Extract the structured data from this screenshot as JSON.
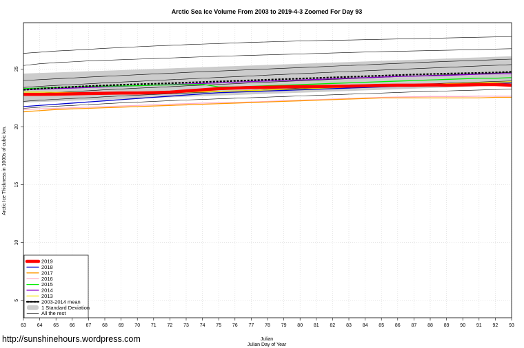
{
  "watermark": "http://sunshinehours.wordpress.com",
  "chart_data": {
    "type": "line",
    "title": "Arctic Sea Ice Volume From 2003 to 2019-4-3 Zoomed For Day 93",
    "xlabel": "Julian",
    "xlabel2": "Julian Day of Year",
    "ylabel": "Arctic Ice Thickness in 1000s of cubic km.",
    "xlim": [
      63,
      93
    ],
    "ylim": [
      3.5,
      29
    ],
    "xticks": [
      "63",
      "64",
      "65",
      "66",
      "67",
      "68",
      "69",
      "70",
      "71",
      "72",
      "73",
      "74",
      "75",
      "76",
      "77",
      "78",
      "79",
      "80",
      "81",
      "82",
      "83",
      "84",
      "85",
      "86",
      "87",
      "88",
      "89",
      "90",
      "91",
      "92",
      "93"
    ],
    "yticks": [
      "5",
      "10",
      "15",
      "20",
      "25"
    ],
    "grid": true,
    "legend_position": "bottom-left",
    "x": [
      63,
      64,
      65,
      66,
      67,
      68,
      69,
      70,
      71,
      72,
      73,
      74,
      75,
      76,
      77,
      78,
      79,
      80,
      81,
      82,
      83,
      84,
      85,
      86,
      87,
      88,
      89,
      90,
      91,
      92,
      93
    ],
    "std_band": {
      "name": "1 Standard Deviation",
      "upper": [
        24.6,
        24.65,
        24.7,
        24.75,
        24.8,
        24.85,
        24.9,
        24.95,
        25.0,
        25.05,
        25.1,
        25.15,
        25.2,
        25.25,
        25.3,
        25.35,
        25.4,
        25.45,
        25.5,
        25.55,
        25.6,
        25.65,
        25.7,
        25.75,
        25.8,
        25.85,
        25.9,
        25.95,
        26.0,
        26.05,
        26.1
      ],
      "lower": [
        22.1,
        22.15,
        22.2,
        22.25,
        22.3,
        22.35,
        22.4,
        22.45,
        22.5,
        22.55,
        22.6,
        22.65,
        22.7,
        22.75,
        22.8,
        22.85,
        22.9,
        22.95,
        23.0,
        23.05,
        23.1,
        23.15,
        23.2,
        23.25,
        23.3,
        23.35,
        23.4,
        23.45,
        23.5,
        23.55,
        23.6
      ]
    },
    "mean": {
      "name": "2003-2014 mean",
      "color": "#000000",
      "values": [
        23.2,
        23.3,
        23.38,
        23.45,
        23.52,
        23.58,
        23.63,
        23.68,
        23.72,
        23.77,
        23.82,
        23.87,
        23.92,
        23.97,
        24.02,
        24.07,
        24.12,
        24.17,
        24.22,
        24.27,
        24.32,
        24.37,
        24.42,
        24.47,
        24.52,
        24.56,
        24.6,
        24.63,
        24.66,
        24.7,
        24.75
      ]
    },
    "rest": {
      "name": "All the rest",
      "color": "#000000",
      "series": [
        [
          26.35,
          26.45,
          26.55,
          26.62,
          26.7,
          26.78,
          26.85,
          26.92,
          26.98,
          27.04,
          27.1,
          27.15,
          27.2,
          27.25,
          27.3,
          27.34,
          27.38,
          27.42,
          27.45,
          27.48,
          27.5,
          27.53,
          27.56,
          27.59,
          27.62,
          27.65,
          27.68,
          27.71,
          27.74,
          27.77,
          27.8
        ],
        [
          25.3,
          25.45,
          25.55,
          25.62,
          25.7,
          25.75,
          25.8,
          25.85,
          25.9,
          25.95,
          26.0,
          26.05,
          26.1,
          26.14,
          26.18,
          26.22,
          26.26,
          26.3,
          26.34,
          26.38,
          26.42,
          26.46,
          26.5,
          26.53,
          26.56,
          26.59,
          26.62,
          26.65,
          26.68,
          26.72,
          26.75
        ],
        [
          24.0,
          24.08,
          24.15,
          24.22,
          24.3,
          24.37,
          24.43,
          24.5,
          24.57,
          24.63,
          24.7,
          24.76,
          24.82,
          24.88,
          24.94,
          25.0,
          25.06,
          25.12,
          25.18,
          25.24,
          25.3,
          25.36,
          25.42,
          25.48,
          25.54,
          25.6,
          25.65,
          25.7,
          25.75,
          25.8,
          25.85
        ],
        [
          23.4,
          23.5,
          23.58,
          23.65,
          23.72,
          23.8,
          23.87,
          23.93,
          24.0,
          24.07,
          24.13,
          24.2,
          24.27,
          24.33,
          24.4,
          24.47,
          24.53,
          24.6,
          24.66,
          24.72,
          24.78,
          24.84,
          24.9,
          24.96,
          25.02,
          25.08,
          25.14,
          25.2,
          25.26,
          25.32,
          25.38
        ],
        [
          22.8,
          22.9,
          22.98,
          23.05,
          23.12,
          23.2,
          23.27,
          23.34,
          23.4,
          23.47,
          23.54,
          23.6,
          23.67,
          23.73,
          23.8,
          23.86,
          23.92,
          23.98,
          24.04,
          24.1,
          24.16,
          24.22,
          24.28,
          24.34,
          24.4,
          24.45,
          24.5,
          24.55,
          24.6,
          24.65,
          24.7
        ],
        [
          22.2,
          22.3,
          22.38,
          22.45,
          22.52,
          22.6,
          22.67,
          22.73,
          22.8,
          22.86,
          22.92,
          22.98,
          23.04,
          23.1,
          23.16,
          23.22,
          23.27,
          23.32,
          23.37,
          23.42,
          23.47,
          23.52,
          23.57,
          23.62,
          23.67,
          23.72,
          23.77,
          23.82,
          23.87,
          23.92,
          23.97
        ],
        [
          21.6,
          21.7,
          21.78,
          21.85,
          21.92,
          22.0,
          22.07,
          22.13,
          22.2,
          22.26,
          22.32,
          22.37,
          22.42,
          22.47,
          22.52,
          22.57,
          22.62,
          22.67,
          22.72,
          22.77,
          22.82,
          22.87,
          22.92,
          22.97,
          23.02,
          23.06,
          23.1,
          23.14,
          23.18,
          23.22,
          23.26
        ]
      ]
    },
    "series": [
      {
        "name": "2013",
        "color": "#f2e600",
        "width": 1.3,
        "values": [
          23.0,
          23.0,
          22.98,
          22.97,
          22.96,
          22.95,
          22.95,
          22.96,
          22.97,
          22.98,
          23.0,
          23.03,
          23.06,
          23.1,
          23.14,
          23.18,
          23.22,
          23.27,
          23.32,
          23.37,
          23.42,
          23.48,
          23.53,
          23.58,
          23.63,
          23.68,
          23.72,
          23.76,
          23.8,
          23.85,
          23.9
        ]
      },
      {
        "name": "2014",
        "color": "#8b00cc",
        "width": 1.3,
        "values": [
          23.2,
          23.25,
          23.3,
          23.35,
          23.4,
          23.45,
          23.5,
          23.55,
          23.6,
          23.65,
          23.7,
          23.75,
          23.8,
          23.86,
          23.92,
          23.96,
          24.0,
          24.05,
          24.1,
          24.15,
          24.2,
          24.25,
          24.3,
          24.35,
          24.38,
          24.42,
          24.45,
          24.5,
          24.55,
          24.58,
          24.6
        ]
      },
      {
        "name": "2015",
        "color": "#00ee00",
        "width": 1.3,
        "values": [
          23.3,
          23.35,
          23.4,
          23.45,
          23.5,
          23.52,
          23.53,
          23.55,
          23.6,
          23.62,
          23.65,
          23.68,
          23.45,
          23.45,
          23.5,
          23.55,
          23.6,
          23.65,
          23.7,
          23.75,
          23.8,
          23.85,
          23.9,
          23.95,
          24.0,
          24.05,
          24.1,
          24.15,
          24.2,
          24.2,
          24.25
        ]
      },
      {
        "name": "2016",
        "color": "#ffb0c8",
        "width": 1.3,
        "values": [
          21.5,
          21.55,
          21.6,
          21.65,
          21.7,
          21.75,
          21.8,
          21.85,
          21.9,
          21.95,
          22.0,
          22.05,
          22.08,
          22.1,
          22.15,
          22.2,
          22.25,
          22.3,
          22.35,
          22.4,
          22.45,
          22.5,
          22.55,
          22.58,
          22.6,
          22.62,
          22.62,
          22.62,
          22.65,
          22.65,
          22.65
        ]
      },
      {
        "name": "2017",
        "color": "#ff9900",
        "width": 1.3,
        "values": [
          21.3,
          21.4,
          21.5,
          21.55,
          21.6,
          21.65,
          21.7,
          21.75,
          21.8,
          21.85,
          21.9,
          21.95,
          22.0,
          22.05,
          22.1,
          22.15,
          22.2,
          22.25,
          22.3,
          22.35,
          22.4,
          22.45,
          22.5,
          22.5,
          22.5,
          22.5,
          22.5,
          22.5,
          22.5,
          22.55,
          22.55
        ]
      },
      {
        "name": "2018",
        "color": "#0000cc",
        "width": 1.3,
        "values": [
          21.75,
          21.85,
          21.95,
          22.05,
          22.15,
          22.25,
          22.35,
          22.45,
          22.55,
          22.65,
          22.75,
          22.85,
          22.95,
          23.0,
          23.05,
          23.1,
          23.15,
          23.2,
          23.25,
          23.3,
          23.35,
          23.4,
          23.45,
          23.5,
          23.5,
          23.55,
          23.6,
          23.65,
          23.7,
          23.75,
          23.8
        ]
      },
      {
        "name": "2019",
        "color": "#ff0000",
        "width": 4.5,
        "values": [
          22.8,
          22.8,
          22.82,
          22.85,
          22.88,
          22.9,
          22.92,
          22.92,
          22.95,
          23.0,
          23.1,
          23.2,
          23.3,
          23.35,
          23.4,
          23.42,
          23.45,
          23.47,
          23.48,
          23.5,
          23.52,
          23.55,
          23.58,
          23.6,
          23.6,
          23.62,
          23.6,
          23.62,
          23.65,
          23.65,
          23.6
        ]
      }
    ],
    "legend": [
      {
        "label": "2019",
        "kind": "line",
        "color": "#ff0000",
        "width": 4.5
      },
      {
        "label": "2018",
        "kind": "line",
        "color": "#0000cc",
        "width": 1.3
      },
      {
        "label": "2017",
        "kind": "line",
        "color": "#ff9900",
        "width": 1.3
      },
      {
        "label": "2016",
        "kind": "line",
        "color": "#ffb0c8",
        "width": 1.3
      },
      {
        "label": "2015",
        "kind": "line",
        "color": "#00ee00",
        "width": 1.3
      },
      {
        "label": "2014",
        "kind": "line",
        "color": "#8b00cc",
        "width": 1.3
      },
      {
        "label": "2013",
        "kind": "line",
        "color": "#f2e600",
        "width": 1.3
      },
      {
        "label": "2003-2014 mean",
        "kind": "dash",
        "color": "#000000",
        "width": 2.2
      },
      {
        "label": "1 Standard Deviation",
        "kind": "band",
        "color": "#cccccc",
        "width": 8
      },
      {
        "label": "All the rest",
        "kind": "line",
        "color": "#000000",
        "width": 0.7
      }
    ]
  }
}
